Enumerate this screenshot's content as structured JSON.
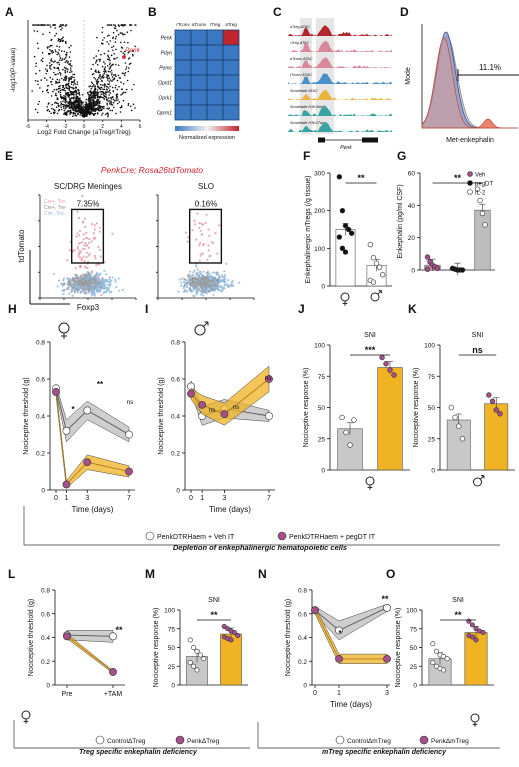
{
  "panel_letters": [
    "A",
    "B",
    "C",
    "D",
    "E",
    "F",
    "G",
    "H",
    "I",
    "J",
    "K",
    "L",
    "M",
    "N",
    "O"
  ],
  "colors": {
    "grey_series": "#8a8a8a",
    "gold_series": "#f0b323",
    "magenta_point": "#a4508b",
    "pink_point": "#e7a0ad",
    "blue_point": "#8fb7dc",
    "heat_blue": "#3a78c2",
    "heat_red": "#c2242b",
    "track_red": "#b3262e",
    "track_pink": "#d9879a",
    "track_blue": "#4a90c8",
    "track_gold": "#e8b33e",
    "track_teal": "#3aa3a3"
  },
  "panelA": {
    "ylabel": "-log10(P-value)",
    "xlabel": "Log2 Fold Change (aTreg/rTreg)",
    "highlight": "Penk"
  },
  "panelB": {
    "columns": [
      "rTconv",
      "aTconv",
      "rTreg",
      "aTreg"
    ],
    "rows": [
      "Penk",
      "Pdyn",
      "Pomc",
      "Oprd1",
      "Oprk1",
      "Oprm1"
    ],
    "colorbar_label": "Normalized expression"
  },
  "panelC": {
    "tracks": [
      "aTreg ATAC",
      "rTreg ATAC",
      "aTconv ATAC",
      "rTconv ATAC",
      "Smoltrade ATAC",
      "Smoltrade H3K4me3",
      "Smoltrade H3K27ac"
    ],
    "gene": "Penk"
  },
  "panelD": {
    "ylabel": "Mode",
    "xlabel": "Met-enkephalin",
    "gate_percent": "11.1%"
  },
  "panelE": {
    "title": "PenkCre; Rosa26tdTomato",
    "plots": [
      {
        "label": "SC/DRG Meninges",
        "percent": "7.35%"
      },
      {
        "label": "SLO",
        "percent": "0.16%"
      }
    ],
    "ylabel": "tdTomato",
    "xlabel": "Foxp3",
    "legend": [
      "Cre+, Tre",
      "Cre+, Tre-",
      "Cre-, Tre-"
    ]
  },
  "panelF": {
    "ylabel": "Enkephalinergic mTregs (/g tissue)",
    "significance": "**",
    "chart_data": {
      "type": "bar",
      "categories": [
        "female",
        "male"
      ],
      "values": [
        150,
        55
      ],
      "ylim": [
        0,
        300
      ],
      "yticks": [
        0,
        100,
        200,
        300
      ],
      "points": [
        [
          290,
          200,
          160,
          150,
          140,
          130,
          100,
          90
        ],
        [
          110,
          75,
          60,
          50,
          30,
          15,
          10
        ]
      ]
    }
  },
  "panelG": {
    "ylabel": "Enkephalin (pg/ml CSF)",
    "significance": "**",
    "legend": [
      "Veh",
      "pegDT",
      "IL-2"
    ],
    "chart_data": {
      "type": "bar",
      "categories": [
        "Veh",
        "pegDT",
        "IL-2"
      ],
      "values": [
        3,
        0.5,
        37
      ],
      "ylim": [
        0,
        60
      ],
      "yticks": [
        0,
        20,
        40,
        60
      ],
      "points": [
        [
          8,
          5,
          3,
          2,
          1,
          0.5
        ],
        [
          1,
          0.5,
          0,
          0,
          0
        ],
        [
          50,
          43,
          35,
          28
        ]
      ]
    }
  },
  "panelH": {
    "ylabel": "Nociceptive threshold (g)",
    "xlabel": "Time (days)",
    "sex": "female",
    "annotations": [
      "*",
      "**",
      "ns"
    ],
    "chart_data": {
      "type": "line",
      "x": [
        0,
        1,
        3,
        7
      ],
      "xticks": [
        0,
        1,
        3,
        7
      ],
      "yticks": [
        0,
        0.2,
        0.4,
        0.6,
        0.8
      ],
      "ylim": [
        0,
        0.8
      ],
      "series": [
        {
          "values": [
            0.55,
            0.32,
            0.43,
            0.3
          ]
        },
        {
          "values": [
            0.53,
            0.03,
            0.15,
            0.1
          ]
        }
      ]
    }
  },
  "panelI": {
    "ylabel": "Nociceptive threshold (g)",
    "xlabel": "Time (days)",
    "sex": "male",
    "annotations": [
      "ns",
      "ns",
      "ns"
    ],
    "chart_data": {
      "type": "line",
      "x": [
        0,
        1,
        3,
        7
      ],
      "xticks": [
        0,
        1,
        3,
        7
      ],
      "yticks": [
        0,
        0.2,
        0.4,
        0.6,
        0.8
      ],
      "ylim": [
        0,
        0.8
      ],
      "series": [
        {
          "values": [
            0.56,
            0.4,
            0.44,
            0.4
          ]
        },
        {
          "values": [
            0.52,
            0.46,
            0.41,
            0.6
          ]
        }
      ]
    }
  },
  "panelJ": {
    "title": "SNI",
    "ylabel": "Nociceptive response (%)",
    "significance": "***",
    "sex": "female",
    "chart_data": {
      "type": "bar",
      "categories": [
        "Veh",
        "pegDT"
      ],
      "values": [
        33,
        82
      ],
      "ylim": [
        0,
        100
      ],
      "yticks": [
        0,
        25,
        50,
        75,
        100
      ],
      "points": [
        [
          42,
          30,
          20,
          40
        ],
        [
          90,
          85,
          80,
          76
        ]
      ]
    }
  },
  "panelK": {
    "title": "SNI",
    "ylabel": "Nociceptive response (%)",
    "significance": "ns",
    "sex": "male",
    "chart_data": {
      "type": "bar",
      "categories": [
        "Veh",
        "pegDT"
      ],
      "values": [
        40,
        53
      ],
      "ylim": [
        0,
        100
      ],
      "yticks": [
        0,
        25,
        50,
        75,
        100
      ],
      "points": [
        [
          50,
          42,
          35,
          25
        ],
        [
          60,
          55,
          48,
          45
        ]
      ]
    }
  },
  "legend_HK": {
    "item1": "PenkDTRHaem + Veh IT",
    "item2": "PenkDTRHaem + pegDT IT",
    "caption": "Depletion of enkephalinergic hematopoietic cells"
  },
  "panelL": {
    "ylabel": "Nociceptive threshold (g)",
    "significance": "**",
    "chart_data": {
      "type": "line",
      "categories": [
        "Pre",
        "+TAM"
      ],
      "yticks": [
        0,
        0.2,
        0.4,
        0.6,
        0.8
      ],
      "ylim": [
        0,
        0.8
      ],
      "series": [
        {
          "values": [
            0.42,
            0.41
          ]
        },
        {
          "values": [
            0.41,
            0.11
          ]
        }
      ]
    }
  },
  "panelM": {
    "title": "SNI",
    "ylabel": "Nociceptive response (%)",
    "significance": "**",
    "chart_data": {
      "type": "bar",
      "categories": [
        "Control",
        "PenkΔTreg"
      ],
      "values": [
        38,
        68
      ],
      "ylim": [
        0,
        100
      ],
      "yticks": [
        0,
        25,
        50,
        75,
        100
      ],
      "points": [
        [
          60,
          50,
          45,
          40,
          35,
          30,
          25,
          20
        ],
        [
          78,
          75,
          72,
          70,
          66,
          64,
          62,
          60
        ]
      ]
    }
  },
  "legend_LM": {
    "item1": "ControlΔTreg",
    "item2": "PenkΔTreg",
    "caption": "Treg specific enkephalin deficiency"
  },
  "panelN": {
    "ylabel": "Nociceptive threshold (g)",
    "xlabel": "Time (days)",
    "annotations": [
      "*",
      "**"
    ],
    "chart_data": {
      "type": "line",
      "x": [
        0,
        1,
        3
      ],
      "xticks": [
        0,
        1,
        3
      ],
      "yticks": [
        0,
        0.2,
        0.4,
        0.6,
        0.8
      ],
      "ylim": [
        0,
        0.8
      ],
      "series": [
        {
          "values": [
            0.63,
            0.46,
            0.65
          ]
        },
        {
          "values": [
            0.63,
            0.22,
            0.22
          ]
        }
      ]
    }
  },
  "panelO": {
    "title": "SNI",
    "ylabel": "Nociceptive response (%)",
    "significance": "**",
    "chart_data": {
      "type": "bar",
      "categories": [
        "Control",
        "PenkΔmTreg"
      ],
      "values": [
        35,
        70
      ],
      "ylim": [
        0,
        100
      ],
      "yticks": [
        0,
        25,
        50,
        75,
        100
      ],
      "points": [
        [
          55,
          45,
          40,
          38,
          35,
          30,
          25,
          22,
          20
        ],
        [
          85,
          80,
          75,
          72,
          70,
          66,
          64,
          60
        ]
      ]
    }
  },
  "legend_NO": {
    "item1": "ControlΔmTreg",
    "item2": "PenkΔmTreg",
    "caption": "mTreg specific enkephalin deficiency"
  }
}
